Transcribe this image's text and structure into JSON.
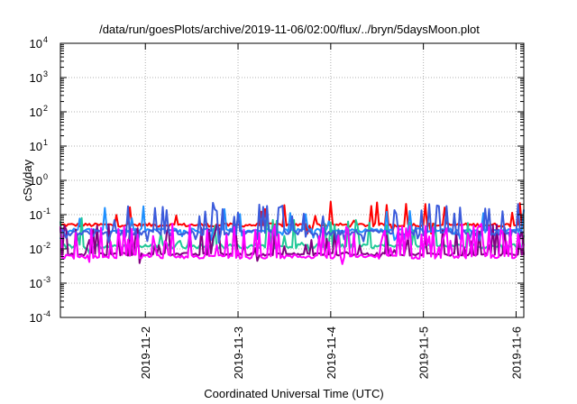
{
  "chart_data": {
    "type": "line",
    "title": "/data/run/goesPlots/archive/2019-11-06/02:00/flux/../bryn/5daysMoon.plot",
    "xlabel": "Coordinated Universal Time (UTC)",
    "ylabel": "cSv/day",
    "y_scale": "log",
    "ylim": [
      0.0001,
      10000
    ],
    "y_ticks": [
      {
        "base": "10",
        "exp": "-4",
        "value": 0.0001
      },
      {
        "base": "10",
        "exp": "-3",
        "value": 0.001
      },
      {
        "base": "10",
        "exp": "-2",
        "value": 0.01
      },
      {
        "base": "10",
        "exp": "-1",
        "value": 0.1
      },
      {
        "base": "10",
        "exp": "0",
        "value": 1
      },
      {
        "base": "10",
        "exp": "1",
        "value": 10
      },
      {
        "base": "10",
        "exp": "2",
        "value": 100
      },
      {
        "base": "10",
        "exp": "3",
        "value": 1000
      },
      {
        "base": "10",
        "exp": "4",
        "value": 10000
      }
    ],
    "xlim": [
      "2019-11-01T02:00",
      "2019-11-06T02:00"
    ],
    "x_ticks": [
      {
        "label": "2019-11-2",
        "date": "2019-11-02"
      },
      {
        "label": "2019-11-3",
        "date": "2019-11-03"
      },
      {
        "label": "2019-11-4",
        "date": "2019-11-04"
      },
      {
        "label": "2019-11-5",
        "date": "2019-11-05"
      },
      {
        "label": "2019-11-6",
        "date": "2019-11-06"
      }
    ],
    "grid": true,
    "legend": "none",
    "series": [
      {
        "color": "#ff0000",
        "base": 0.05,
        "variation": 0.12,
        "spike_prob": 0.06,
        "spike_max": 1.3,
        "dip_prob": 0.03
      },
      {
        "color": "#1e90ff",
        "base": 0.035,
        "variation": 0.14,
        "spike_prob": 0.05,
        "spike_max": 1.2,
        "dip_prob": 0.08
      },
      {
        "color": "#20c997",
        "base": 0.012,
        "variation": 0.15,
        "spike_prob": 0.14,
        "spike_max": 1.8,
        "dip_prob": 0.02
      },
      {
        "color": "#800080",
        "base": 0.007,
        "variation": 0.1,
        "spike_prob": 0.22,
        "spike_max": 2.2,
        "dip_prob": 0.02
      },
      {
        "color": "#3b5bdb",
        "base": 0.03,
        "variation": 0.18,
        "spike_prob": 0.18,
        "spike_max": 1.9,
        "dip_prob": 0.12
      },
      {
        "color": "#ff00ff",
        "base": 0.006,
        "variation": 0.14,
        "spike_prob": 0.3,
        "spike_max": 2.5,
        "dip_prob": 0.02
      }
    ]
  }
}
